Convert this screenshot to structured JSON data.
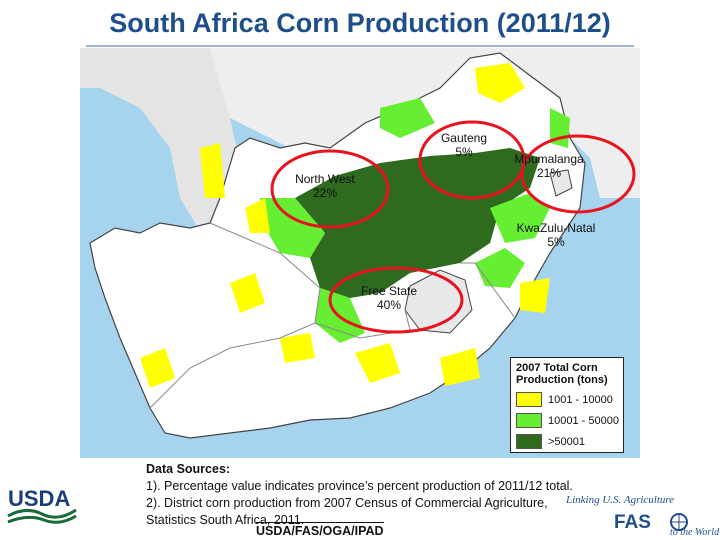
{
  "title": "South Africa Corn Production (2011/12)",
  "colors": {
    "title": "#1f4e8c",
    "ocean": "#a6d4ee",
    "land_outside": "#f0f0f0",
    "district_white": "#ffffff",
    "low": "#ffff00",
    "mid": "#66ee33",
    "high": "#2e6b1e",
    "highlight_circle": "#e8131f"
  },
  "provinces": [
    {
      "name": "Gauteng",
      "percent": "5%"
    },
    {
      "name": "North West",
      "percent": "22%"
    },
    {
      "name": "Mpumalanga",
      "percent": "21%"
    },
    {
      "name": "KwaZulu-Natal",
      "percent": "5%"
    },
    {
      "name": "Free State",
      "percent": "40%"
    }
  ],
  "legend": {
    "title_line1": "2007 Total Corn",
    "title_line2": "Production (tons)",
    "items": [
      {
        "label": "1001 - 10000",
        "color": "#ffff00"
      },
      {
        "label": "10001 - 50000",
        "color": "#66ee33"
      },
      {
        "label": ">50001",
        "color": "#2e6b1e"
      }
    ]
  },
  "sources": {
    "heading": "Data Sources:",
    "line1": "1). Percentage value indicates province’s percent production of 2011/12 total.",
    "line2": "2). District corn production from 2007 Census of Commercial Agriculture,",
    "line3": "Statistics South Africa, 2011."
  },
  "footer": "USDA/FAS/OGA/IPAD",
  "logos": {
    "usda": "USDA",
    "fas_tagline": "Linking U.S. Agriculture",
    "fas": "FAS",
    "fas_world": "to the World"
  }
}
